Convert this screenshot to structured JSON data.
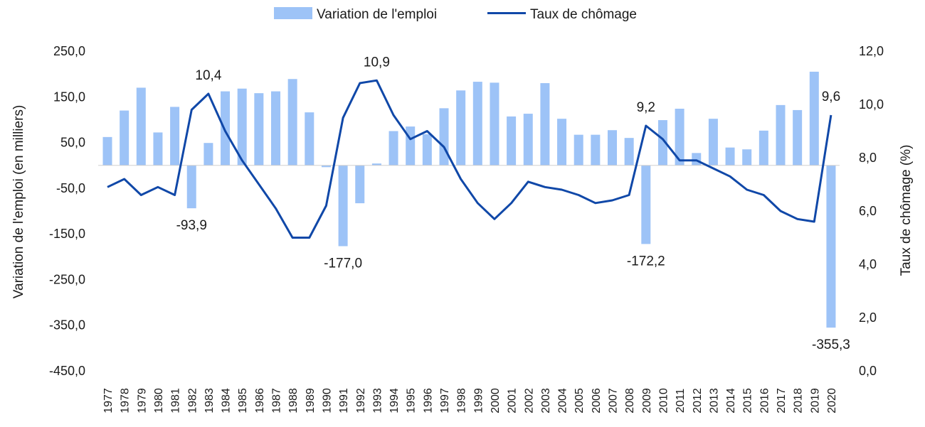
{
  "chart_data": {
    "type": "bar+line",
    "x": [
      "1977",
      "1978",
      "1979",
      "1980",
      "1981",
      "1982",
      "1983",
      "1984",
      "1985",
      "1986",
      "1987",
      "1988",
      "1989",
      "1990",
      "1991",
      "1992",
      "1993",
      "1994",
      "1995",
      "1996",
      "1997",
      "1998",
      "1999",
      "2000",
      "2001",
      "2002",
      "2003",
      "2004",
      "2005",
      "2006",
      "2007",
      "2008",
      "2009",
      "2010",
      "2011",
      "2012",
      "2013",
      "2014",
      "2015",
      "2016",
      "2017",
      "2018",
      "2019",
      "2020"
    ],
    "series": [
      {
        "name": "Variation de l'emploi",
        "kind": "bar",
        "axis": "left",
        "color": "#9DC3F7",
        "values": [
          62,
          120,
          170,
          72,
          128,
          -94,
          49,
          162,
          168,
          158,
          162,
          189,
          116,
          -4,
          -177,
          -83,
          4,
          75,
          85,
          68,
          125,
          164,
          183,
          181,
          107,
          113,
          180,
          102,
          67,
          67,
          77,
          60,
          -172.2,
          99,
          124,
          27,
          102,
          39,
          35,
          76,
          132,
          121,
          205,
          -355.3
        ]
      },
      {
        "name": "Taux de chômage",
        "kind": "line",
        "axis": "right",
        "color": "#1048A8",
        "values": [
          6.9,
          7.2,
          6.6,
          6.9,
          6.6,
          9.8,
          10.4,
          9.0,
          7.9,
          7.0,
          6.1,
          5.0,
          5.0,
          6.2,
          9.5,
          10.8,
          10.9,
          9.6,
          8.7,
          9.0,
          8.4,
          7.2,
          6.3,
          5.7,
          6.3,
          7.1,
          6.9,
          6.8,
          6.6,
          6.3,
          6.4,
          6.6,
          9.2,
          8.7,
          7.9,
          7.9,
          7.6,
          7.3,
          6.8,
          6.6,
          6.0,
          5.7,
          5.6,
          9.6
        ]
      }
    ],
    "annotations": [
      {
        "year": "1982",
        "text": "-93,9",
        "position": "below"
      },
      {
        "year": "1983",
        "text": "10,4",
        "position": "above"
      },
      {
        "year": "1991",
        "text": "-177,0",
        "position": "below"
      },
      {
        "year": "1993",
        "text": "10,9",
        "position": "above"
      },
      {
        "year": "2009",
        "text": "9,2",
        "position": "above"
      },
      {
        "year": "2009",
        "text": "-172,2",
        "position": "below"
      },
      {
        "year": "2020",
        "text": "9,6",
        "position": "above"
      },
      {
        "year": "2020",
        "text": "-355,3",
        "position": "below"
      }
    ],
    "y_left": {
      "label": "Variation de l'emploi (en milliers)",
      "range": [
        -450,
        250
      ],
      "ticks": [
        250,
        150,
        50,
        -50,
        -150,
        -250,
        -350,
        -450
      ],
      "tick_labels": [
        "250,0",
        "150,0",
        "50,0",
        "-50,0",
        "-150,0",
        "-250,0",
        "-350,0",
        "-450,0"
      ]
    },
    "y_right": {
      "label": "Taux de chômage (%)",
      "range": [
        0,
        12
      ],
      "ticks": [
        12,
        10,
        8,
        6,
        4,
        2,
        0
      ],
      "tick_labels": [
        "12,0",
        "10,0",
        "8,0",
        "6,0",
        "4,0",
        "2,0",
        "0,0"
      ]
    },
    "legend": {
      "placement": "top-center"
    },
    "grid": false
  }
}
